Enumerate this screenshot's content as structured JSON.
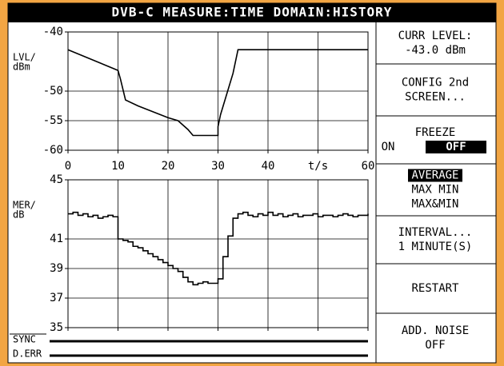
{
  "header": {
    "title": "DVB-C MEASURE:TIME DOMAIN:HISTORY"
  },
  "chart_data": [
    {
      "type": "line",
      "ylabel": [
        "LVL/",
        "dBm"
      ],
      "x": [
        0,
        10,
        10.5,
        11.5,
        14,
        20,
        22,
        24,
        25,
        30,
        30,
        30.5,
        33,
        34,
        60
      ],
      "series": [
        {
          "color": "#000000",
          "values": [
            -43,
            -46.5,
            -48,
            -51.5,
            -52.5,
            -54.5,
            -55,
            -56.5,
            -57.5,
            -57.5,
            -56,
            -54,
            -47,
            -43,
            -43
          ]
        }
      ],
      "xlim": [
        0,
        60
      ],
      "xticks": [
        0,
        10,
        20,
        30,
        40,
        {
          "value": 50,
          "label": "t/s"
        },
        60
      ],
      "ylim": [
        -60,
        -40
      ],
      "yticks": [
        -40,
        -50,
        -55,
        -60
      ],
      "grid": true
    },
    {
      "type": "step",
      "ylabel": [
        "MER/",
        "dB"
      ],
      "x": [
        0,
        1,
        2,
        3,
        4,
        5,
        6,
        7,
        8,
        9,
        10,
        11,
        12,
        13,
        14,
        15,
        16,
        17,
        18,
        19,
        20,
        21,
        22,
        23,
        24,
        25,
        26,
        27,
        28,
        29,
        30,
        31,
        32,
        33,
        34,
        35,
        36,
        37,
        38,
        39,
        40,
        41,
        42,
        43,
        44,
        45,
        46,
        47,
        48,
        49,
        50,
        51,
        52,
        53,
        54,
        55,
        56,
        57,
        58,
        59,
        60
      ],
      "series": [
        {
          "color": "#000000",
          "values": [
            42.7,
            42.8,
            42.6,
            42.7,
            42.5,
            42.6,
            42.4,
            42.5,
            42.6,
            42.5,
            41.0,
            40.9,
            40.8,
            40.5,
            40.4,
            40.2,
            40.0,
            39.8,
            39.6,
            39.4,
            39.2,
            39.0,
            38.8,
            38.4,
            38.1,
            37.9,
            38.0,
            38.1,
            38.0,
            38.0,
            38.3,
            39.8,
            41.2,
            42.4,
            42.7,
            42.8,
            42.6,
            42.5,
            42.7,
            42.6,
            42.8,
            42.6,
            42.7,
            42.5,
            42.6,
            42.7,
            42.5,
            42.6,
            42.6,
            42.7,
            42.5,
            42.6,
            42.6,
            42.5,
            42.6,
            42.7,
            42.6,
            42.5,
            42.6,
            42.6,
            42.7
          ]
        }
      ],
      "xlim": [
        0,
        60
      ],
      "ylim": [
        35,
        45
      ],
      "yticks": [
        45,
        41,
        39,
        37,
        35
      ],
      "grid": true
    }
  ],
  "status_rows": [
    "SYNC",
    "D.ERR"
  ],
  "softkeys": [
    {
      "lines": [
        "CURR LEVEL:",
        "-43.0 dBm"
      ]
    },
    {
      "lines": [
        "CONFIG 2nd",
        "SCREEN..."
      ]
    },
    {
      "lines": [
        "FREEZE"
      ],
      "options": [
        "ON",
        "OFF"
      ],
      "selected": 1
    },
    {
      "lines": [
        "AVERAGE",
        "MAX MIN",
        "MAX&MIN"
      ],
      "selected_line": 0
    },
    {
      "lines": [
        "INTERVAL...",
        "1 MINUTE(S)"
      ]
    },
    {
      "lines": [
        "RESTART"
      ]
    },
    {
      "lines": [
        "ADD. NOISE",
        "OFF"
      ]
    }
  ]
}
